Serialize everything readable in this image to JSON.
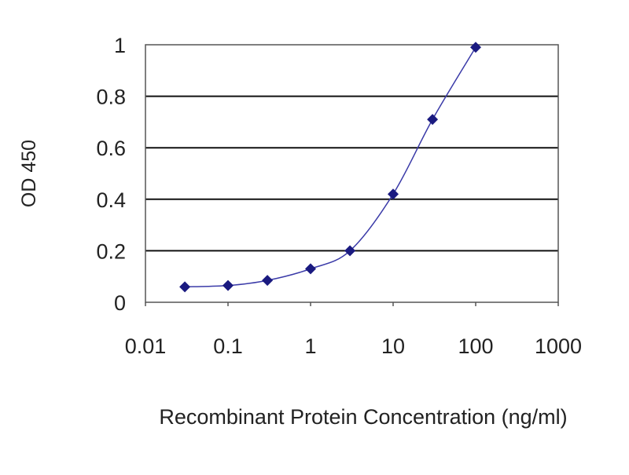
{
  "chart_data": {
    "type": "line",
    "title": "",
    "xlabel": "Recombinant Protein Concentration (ng/ml)",
    "ylabel": "OD 450",
    "xscale": "log",
    "xlim": [
      0.01,
      1000
    ],
    "ylim": [
      0,
      1
    ],
    "x_ticks": [
      "0.01",
      "0.1",
      "1",
      "10",
      "100",
      "1000"
    ],
    "y_ticks": [
      "0",
      "0.2",
      "0.4",
      "0.6",
      "0.8",
      "1"
    ],
    "grid": "horizontal",
    "series": [
      {
        "name": "OD 450",
        "color": "#1a1a80",
        "x": [
          0.03,
          0.1,
          0.3,
          1,
          3,
          10,
          30,
          100
        ],
        "y": [
          0.06,
          0.065,
          0.085,
          0.13,
          0.2,
          0.42,
          0.71,
          0.99
        ]
      }
    ]
  }
}
